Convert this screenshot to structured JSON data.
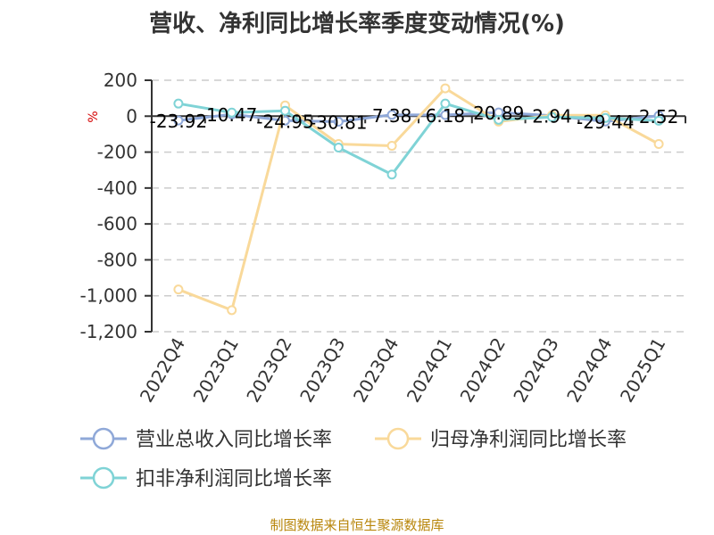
{
  "chart_data": {
    "type": "line",
    "title": "营收、净利同比增长率季度变动情况(%)",
    "unit": "%",
    "categories": [
      "2022Q4",
      "2023Q1",
      "2023Q2",
      "2023Q3",
      "2023Q4",
      "2024Q1",
      "2024Q2",
      "2024Q3",
      "2024Q4",
      "2025Q1"
    ],
    "ylim": [
      -1200,
      200
    ],
    "yticks": [
      200,
      0,
      -200,
      -400,
      -600,
      -800,
      -1000,
      -1200
    ],
    "ytick_labels": [
      "200",
      "0",
      "-200",
      "-400",
      "-600",
      "-800",
      "-1,000",
      "-1,200"
    ],
    "grid": true,
    "legend_position": "bottom",
    "series": [
      {
        "name": "营业总收入同比增长率",
        "color": "#8fa8d8",
        "values": [
          -23.92,
          10.47,
          -24.95,
          -30.81,
          7.38,
          6.18,
          20.89,
          2.94,
          -29.44,
          2.52
        ],
        "labels": [
          "-23.92",
          "10.47",
          "-24.95",
          "-30.81",
          "7.38",
          "6.18",
          "20.89",
          "2.94",
          "-29.44",
          "2.52"
        ]
      },
      {
        "name": "归母净利润同比增长率",
        "color": "#f9d99a",
        "values": [
          -965,
          -1080,
          60,
          -155,
          -165,
          155,
          -30,
          5,
          5,
          -155
        ]
      },
      {
        "name": "扣非净利润同比增长率",
        "color": "#7fd3d6",
        "values": [
          70,
          20,
          30,
          -175,
          -325,
          70,
          -20,
          -5,
          -10,
          -25
        ]
      }
    ]
  },
  "source": "制图数据来自恒生聚源数据库"
}
